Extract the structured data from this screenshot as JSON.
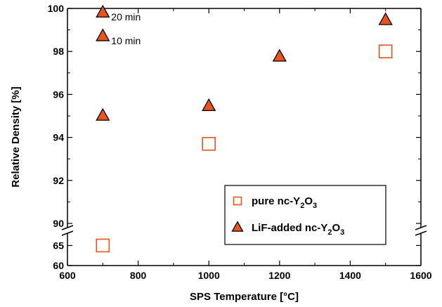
{
  "chart_data": {
    "type": "scatter",
    "xlabel": "SPS Temperature [°C]",
    "ylabel": "Relative Density [%]",
    "xlim": [
      600,
      1600
    ],
    "x_ticks": [
      600,
      800,
      1000,
      1200,
      1400,
      1600
    ],
    "y_upper": {
      "range": [
        90,
        100
      ],
      "ticks": [
        90,
        92,
        94,
        96,
        98,
        100
      ]
    },
    "y_lower": {
      "range": [
        60,
        67
      ],
      "ticks": [
        60,
        65
      ]
    },
    "axis_break": true,
    "grid": false,
    "legend_position": "bottom-right",
    "legend": [
      {
        "series": "pure",
        "label": "pure nc-Y",
        "sub1": "2",
        "mid": "O",
        "sub2": "3"
      },
      {
        "series": "lif",
        "label": "LiF-added nc-Y",
        "sub1": "2",
        "mid": "O",
        "sub2": "3"
      }
    ],
    "series": [
      {
        "id": "pure",
        "marker": "open-square",
        "color": "#e8541e",
        "points": [
          {
            "x": 700,
            "y": 65
          },
          {
            "x": 1000,
            "y": 93.7
          },
          {
            "x": 1500,
            "y": 98.0
          }
        ]
      },
      {
        "id": "lif",
        "marker": "filled-triangle",
        "color": "#e8541e",
        "points": [
          {
            "x": 700,
            "y": 95.0
          },
          {
            "x": 700,
            "y": 98.7
          },
          {
            "x": 700,
            "y": 99.8
          },
          {
            "x": 1000,
            "y": 95.45
          },
          {
            "x": 1200,
            "y": 97.75
          },
          {
            "x": 1500,
            "y": 99.45
          }
        ]
      }
    ],
    "annotations": [
      {
        "text": "20 min",
        "x": 700,
        "y": 99.8
      },
      {
        "text": "10 min",
        "x": 700,
        "y": 98.7
      }
    ]
  }
}
